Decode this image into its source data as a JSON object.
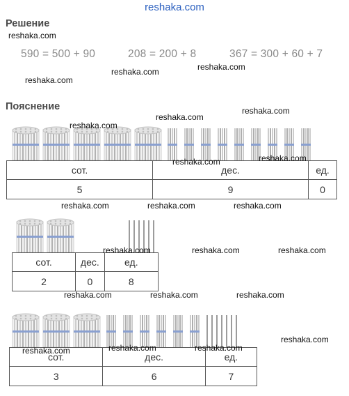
{
  "site_title": "reshaka.com",
  "watermark": "reshaka.com",
  "solution": {
    "heading": "Решение",
    "equations": [
      "590 = 500 + 90",
      "208 = 200 + 8",
      "367 = 300 + 60 + 7"
    ]
  },
  "explanation": {
    "heading": "Пояснение",
    "column_headers": {
      "hundreds": "сот.",
      "tens": "дес.",
      "units": "ед."
    },
    "examples": [
      {
        "number": 590,
        "bundles_of_hundred": 5,
        "bundles_of_ten": 9,
        "single_sticks": 0,
        "hundreds": "5",
        "tens": "9",
        "units": "0"
      },
      {
        "number": 208,
        "bundles_of_hundred": 2,
        "bundles_of_ten": 0,
        "single_sticks": 8,
        "hundreds": "2",
        "tens": "0",
        "units": "8"
      },
      {
        "number": 367,
        "bundles_of_hundred": 3,
        "bundles_of_ten": 6,
        "single_sticks": 7,
        "hundreds": "3",
        "tens": "6",
        "units": "7"
      }
    ]
  }
}
